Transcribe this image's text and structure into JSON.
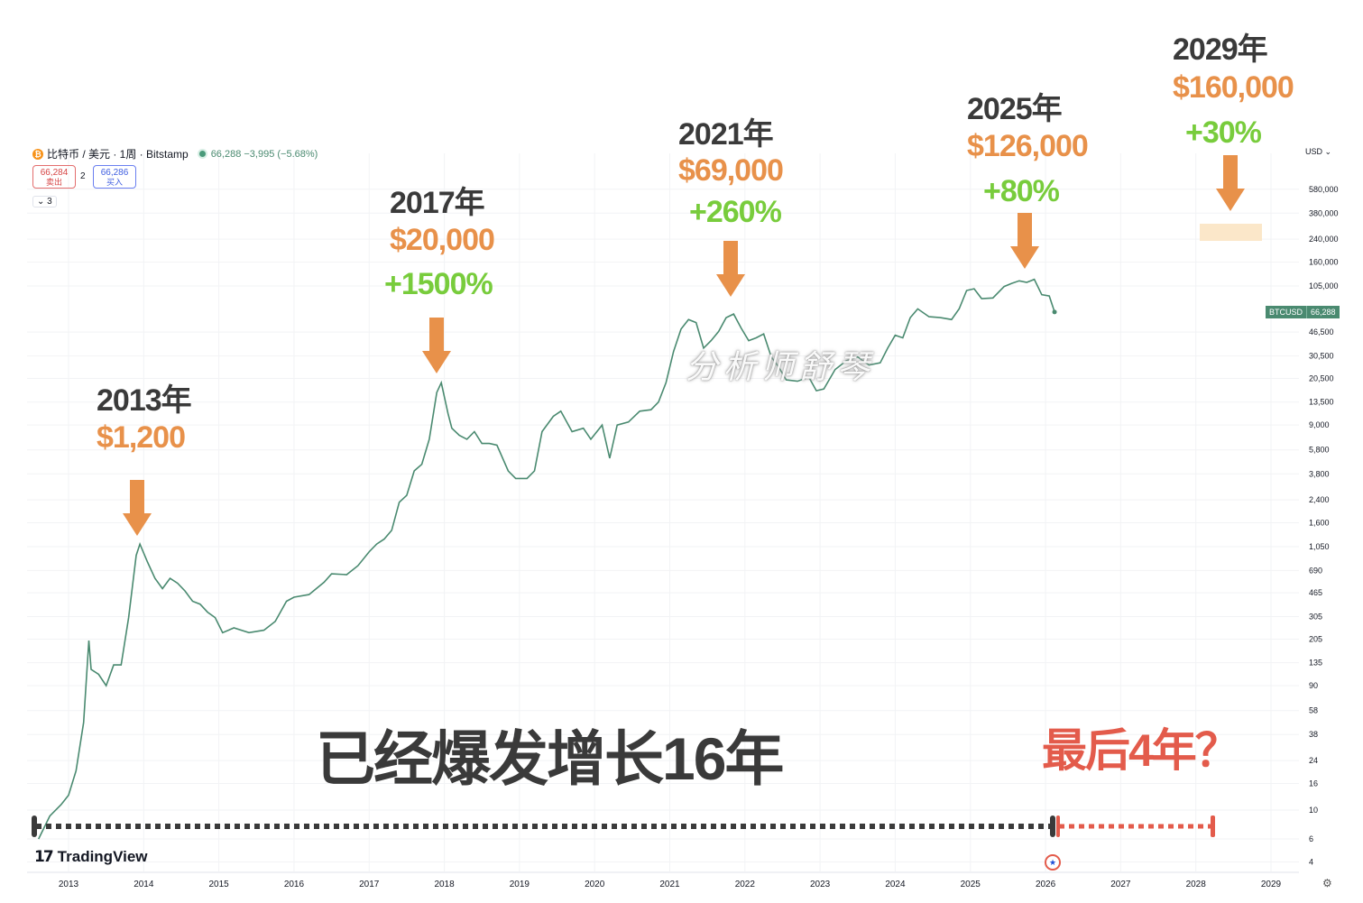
{
  "header": {
    "symbol_line": "比特币 / 美元 · 1周 · Bitstamp",
    "coin_icon": "bitcoin-icon",
    "price_change": "66,288 −3,995 (−5.68%)",
    "sell_price": "66,284",
    "sell_label": "卖出",
    "spread": "2",
    "buy_price": "66,286",
    "buy_label": "买入",
    "collapse_label": "⌄ 3"
  },
  "axis": {
    "currency": "USD",
    "ticker_symbol": "BTCUSD",
    "ticker_price": "66,288"
  },
  "annotations": {
    "y2013": "2013年",
    "p2013": "$1,200",
    "y2017": "2017年",
    "p2017": "$20,000",
    "g2017": "+1500%",
    "y2021": "2021年",
    "p2021": "$69,000",
    "g2021": "+260%",
    "y2025": "2025年",
    "p2025": "$126,000",
    "g2025": "+80%",
    "y2029": "2029年",
    "p2029": "$160,000",
    "g2029": "+30%"
  },
  "titles": {
    "main": "已经爆发增长16年",
    "last": "最后4年？",
    "watermark": "分析师舒琴"
  },
  "branding": {
    "logo_text": "TradingView"
  },
  "colors": {
    "line": "#4a8a70",
    "orange": "#e8914a",
    "green": "#78cc3c",
    "red": "#e35b4b",
    "dark": "#3a3a3a"
  },
  "chart_data": {
    "type": "line",
    "title": "",
    "xlabel": "",
    "ylabel": "",
    "y_scale": "log",
    "x_ticks": [
      "2013",
      "2014",
      "2015",
      "2016",
      "2017",
      "2018",
      "2019",
      "2020",
      "2021",
      "2022",
      "2023",
      "2024",
      "2025",
      "2026",
      "2027",
      "2028",
      "2029"
    ],
    "y_ticks": [
      4,
      6,
      10,
      16,
      24,
      38,
      58,
      90,
      135,
      205,
      305,
      465,
      690,
      1050,
      1600,
      2400,
      3800,
      5800,
      9000,
      13500,
      20500,
      30500,
      46500,
      105000,
      160000,
      240000,
      380000,
      580000
    ],
    "series": [
      {
        "name": "BTCUSD",
        "x": [
          2012.6,
          2012.75,
          2012.9,
          2013.0,
          2013.1,
          2013.2,
          2013.27,
          2013.3,
          2013.4,
          2013.5,
          2013.6,
          2013.7,
          2013.8,
          2013.9,
          2013.95,
          2014.05,
          2014.15,
          2014.25,
          2014.35,
          2014.45,
          2014.55,
          2014.65,
          2014.75,
          2014.85,
          2014.95,
          2015.05,
          2015.2,
          2015.4,
          2015.6,
          2015.75,
          2015.9,
          2016.0,
          2016.2,
          2016.4,
          2016.5,
          2016.7,
          2016.85,
          2017.0,
          2017.1,
          2017.2,
          2017.3,
          2017.4,
          2017.5,
          2017.6,
          2017.7,
          2017.8,
          2017.9,
          2017.96,
          2018.05,
          2018.1,
          2018.2,
          2018.3,
          2018.4,
          2018.5,
          2018.6,
          2018.7,
          2018.85,
          2018.95,
          2019.1,
          2019.2,
          2019.3,
          2019.45,
          2019.55,
          2019.7,
          2019.85,
          2019.95,
          2020.1,
          2020.2,
          2020.3,
          2020.45,
          2020.6,
          2020.75,
          2020.85,
          2020.95,
          2021.05,
          2021.15,
          2021.25,
          2021.35,
          2021.45,
          2021.55,
          2021.65,
          2021.75,
          2021.85,
          2021.95,
          2022.05,
          2022.15,
          2022.25,
          2022.35,
          2022.45,
          2022.55,
          2022.7,
          2022.85,
          2022.95,
          2023.05,
          2023.2,
          2023.35,
          2023.5,
          2023.65,
          2023.8,
          2023.9,
          2024.0,
          2024.1,
          2024.2,
          2024.3,
          2024.45,
          2024.6,
          2024.75,
          2024.85,
          2024.95,
          2025.05,
          2025.15,
          2025.3,
          2025.45,
          2025.55,
          2025.65,
          2025.75,
          2025.85,
          2025.95,
          2026.05,
          2026.12
        ],
        "y": [
          6,
          9,
          11,
          13,
          20,
          47,
          200,
          120,
          110,
          90,
          130,
          130,
          300,
          900,
          1100,
          800,
          600,
          500,
          600,
          550,
          480,
          400,
          380,
          330,
          300,
          230,
          250,
          230,
          240,
          280,
          400,
          430,
          450,
          560,
          650,
          640,
          750,
          960,
          1100,
          1200,
          1400,
          2300,
          2600,
          4000,
          4500,
          7000,
          16000,
          19000,
          11000,
          8500,
          7500,
          7000,
          8000,
          6500,
          6500,
          6300,
          4000,
          3500,
          3500,
          4000,
          8000,
          10500,
          11500,
          8000,
          8500,
          7000,
          9000,
          5000,
          9000,
          9500,
          11500,
          11800,
          13500,
          19000,
          33000,
          49000,
          58000,
          55000,
          35000,
          40000,
          47000,
          60000,
          64000,
          50000,
          40000,
          42000,
          45000,
          30000,
          25000,
          20000,
          19500,
          21000,
          16500,
          17000,
          24000,
          28000,
          30000,
          26000,
          27000,
          35000,
          44000,
          42000,
          60000,
          70000,
          61000,
          60000,
          58000,
          70000,
          97000,
          100000,
          84000,
          85000,
          104000,
          110000,
          115000,
          112000,
          118000,
          90000,
          88000,
          66288
        ]
      }
    ],
    "annotations": [
      {
        "label": "2013年",
        "price": "$1,200"
      },
      {
        "label": "2017年",
        "price": "$20,000",
        "growth": "+1500%"
      },
      {
        "label": "2021年",
        "price": "$69,000",
        "growth": "+260%"
      },
      {
        "label": "2025年",
        "price": "$126,000",
        "growth": "+80%"
      },
      {
        "label": "2029年",
        "price": "$160,000",
        "growth": "+30%"
      }
    ]
  }
}
